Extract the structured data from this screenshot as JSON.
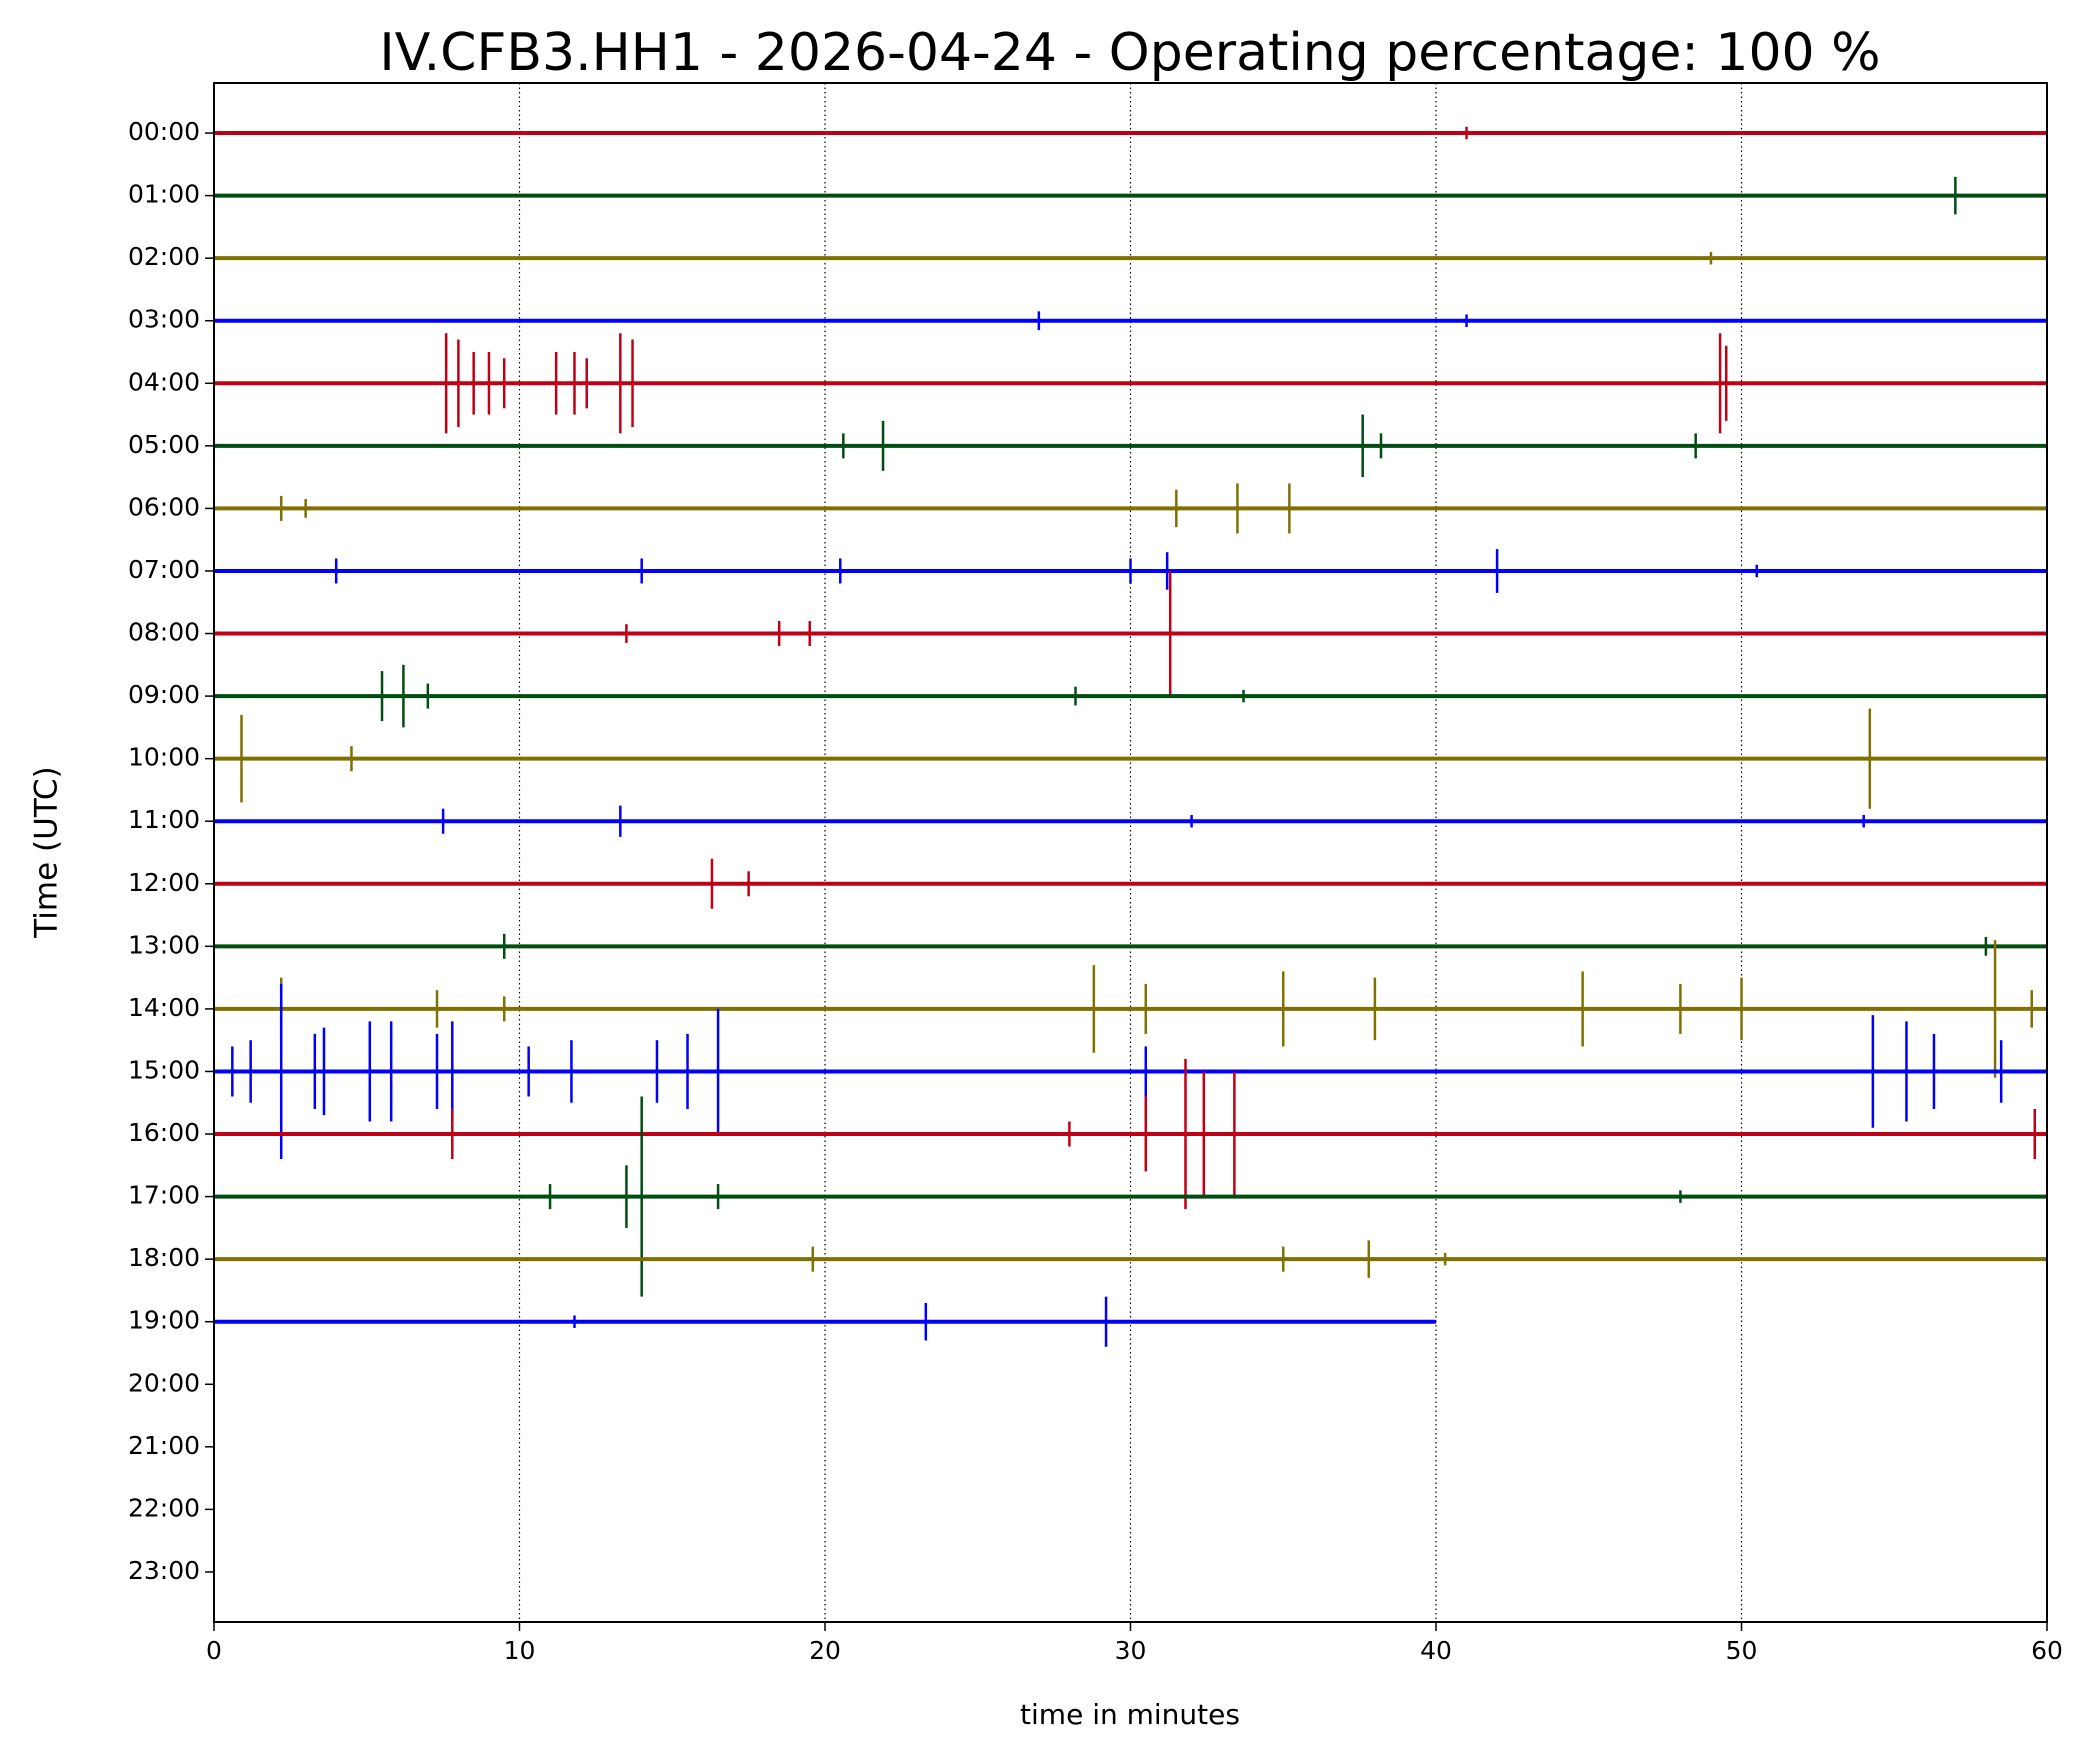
{
  "chart_data": {
    "type": "helicorder",
    "title": "IV.CFB3.HH1 - 2026-04-24 - Operating percentage: 100 %",
    "x_label": "time in minutes",
    "y_label": "Time (UTC)",
    "xlim": [
      0,
      60
    ],
    "xticks": [
      0,
      10,
      20,
      30,
      40,
      50,
      60
    ],
    "ylim": [
      -0.8,
      23.8
    ],
    "y_inverted": true,
    "grid": true,
    "categories": [
      "00:00",
      "01:00",
      "02:00",
      "03:00",
      "04:00",
      "05:00",
      "06:00",
      "07:00",
      "08:00",
      "09:00",
      "10:00",
      "11:00",
      "12:00",
      "13:00",
      "14:00",
      "15:00",
      "16:00",
      "17:00",
      "18:00",
      "19:00",
      "20:00",
      "21:00",
      "22:00",
      "23:00"
    ],
    "series": [
      {
        "color": "#c00014",
        "x": [
          0,
          41,
          60
        ],
        "values": [
          0,
          0.1,
          0
        ]
      },
      {
        "color": "#004d12",
        "x": [
          0,
          57,
          60
        ],
        "values": [
          0,
          0.3,
          0
        ]
      },
      {
        "color": "#807000",
        "x": [
          0,
          49,
          60
        ],
        "values": [
          0,
          0.1,
          0
        ]
      },
      {
        "color": "#0000ff",
        "x": [
          0,
          27,
          41,
          60
        ],
        "values": [
          0,
          0.15,
          0.1,
          0
        ]
      },
      {
        "color": "#c00014",
        "x": [
          0,
          7.6,
          8,
          8.5,
          9,
          9.5,
          11.2,
          11.8,
          12.2,
          13.3,
          13.7,
          49.3,
          49.5,
          60
        ],
        "values": [
          0,
          0.8,
          0.7,
          0.5,
          0.5,
          0.4,
          0.5,
          0.5,
          0.4,
          0.8,
          0.7,
          0.8,
          0.6,
          0
        ]
      },
      {
        "color": "#004d12",
        "x": [
          0,
          20.6,
          21.9,
          37.6,
          38.2,
          48.5,
          60
        ],
        "values": [
          0,
          0.2,
          0.4,
          0.5,
          0.2,
          0.2,
          0
        ]
      },
      {
        "color": "#807000",
        "x": [
          0,
          2.2,
          3,
          31.5,
          33.5,
          35.2,
          60
        ],
        "values": [
          0,
          0.2,
          0.15,
          0.3,
          0.4,
          0.4,
          0
        ]
      },
      {
        "color": "#0000ff",
        "x": [
          0,
          4,
          14,
          20.5,
          30,
          31.2,
          42,
          50.5,
          60
        ],
        "values": [
          0,
          0.2,
          0.2,
          0.2,
          0.2,
          0.3,
          0.35,
          0.1,
          0
        ]
      },
      {
        "color": "#c00014",
        "x": [
          0,
          13.5,
          18.5,
          19.5,
          31.3,
          60
        ],
        "values": [
          0,
          0.15,
          0.2,
          0.2,
          1,
          0
        ]
      },
      {
        "color": "#004d12",
        "x": [
          0,
          5.5,
          6.2,
          7,
          28.2,
          33.7,
          60
        ],
        "values": [
          0,
          0.4,
          0.5,
          0.2,
          0.15,
          0.1,
          0
        ]
      },
      {
        "color": "#807000",
        "x": [
          0,
          0.9,
          4.5,
          54.2,
          60
        ],
        "values": [
          0,
          0.7,
          0.2,
          0.8,
          0
        ]
      },
      {
        "color": "#0000ff",
        "x": [
          0,
          7.5,
          13.3,
          32,
          54,
          60
        ],
        "values": [
          0,
          0.2,
          0.25,
          0.1,
          0.1,
          0
        ]
      },
      {
        "color": "#c00014",
        "x": [
          0,
          16.3,
          17.5,
          60
        ],
        "values": [
          0,
          0.4,
          0.2,
          0
        ]
      },
      {
        "color": "#004d12",
        "x": [
          0,
          9.5,
          58,
          60
        ],
        "values": [
          0,
          0.2,
          0.15,
          0
        ]
      },
      {
        "color": "#807000",
        "x": [
          0,
          2.2,
          7.3,
          9.5,
          28.8,
          30.5,
          35,
          38,
          44.8,
          48,
          50,
          58.3,
          59.5,
          60
        ],
        "values": [
          0,
          0.5,
          0.3,
          0.2,
          0.7,
          0.4,
          0.6,
          0.5,
          0.6,
          0.4,
          0.5,
          1.1,
          0.3,
          0
        ]
      },
      {
        "color": "#0000ff",
        "x": [
          0,
          0.6,
          1.2,
          2.2,
          3.3,
          3.6,
          5.1,
          5.8,
          7.3,
          7.8,
          10.3,
          11.7,
          14.5,
          15.5,
          16.5,
          30.5,
          54.3,
          55.4,
          56.3,
          58.5,
          60
        ],
        "values": [
          0,
          0.4,
          0.5,
          1.4,
          0.6,
          0.7,
          0.8,
          0.8,
          0.6,
          0.8,
          0.4,
          0.5,
          0.5,
          0.6,
          1,
          0.4,
          0.9,
          0.8,
          0.6,
          0.5,
          0
        ]
      },
      {
        "color": "#c00014",
        "x": [
          0,
          7.8,
          28,
          30.5,
          31.8,
          32.4,
          33.4,
          59.6,
          60
        ],
        "values": [
          0,
          0.4,
          0.2,
          0.6,
          1.2,
          1,
          1,
          0.4,
          0
        ]
      },
      {
        "color": "#004d12",
        "x": [
          0,
          11,
          13.5,
          14,
          16.5,
          48,
          60
        ],
        "values": [
          0,
          0.2,
          0.5,
          1.6,
          0.2,
          0.1,
          0
        ]
      },
      {
        "color": "#807000",
        "x": [
          0,
          19.6,
          35,
          37.8,
          40.3,
          60
        ],
        "values": [
          0,
          0.2,
          0.2,
          0.3,
          0.1,
          0
        ]
      },
      {
        "color": "#0000ff",
        "x": [
          0,
          11.8,
          23.3,
          29.2,
          40
        ],
        "values": [
          0,
          0.1,
          0.3,
          0.4,
          0
        ]
      }
    ]
  }
}
